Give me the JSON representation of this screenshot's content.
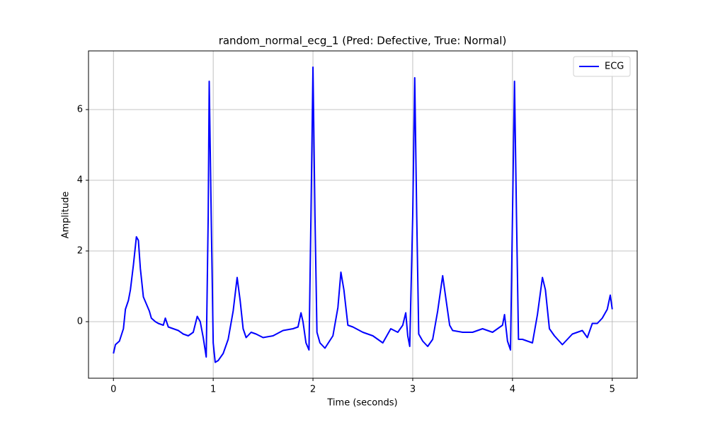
{
  "chart_data": {
    "type": "line",
    "title": "random_normal_ecg_1 (Pred: Defective, True: Normal)",
    "xlabel": "Time (seconds)",
    "ylabel": "Amplitude",
    "x": [
      0,
      0.02,
      0.06,
      0.1,
      0.12,
      0.15,
      0.17,
      0.2,
      0.23,
      0.25,
      0.27,
      0.3,
      0.33,
      0.36,
      0.38,
      0.42,
      0.45,
      0.5,
      0.52,
      0.55,
      0.6,
      0.65,
      0.7,
      0.75,
      0.8,
      0.84,
      0.87,
      0.9,
      0.93,
      0.95,
      0.96,
      0.98,
      1.0,
      1.02,
      1.05,
      1.1,
      1.15,
      1.2,
      1.24,
      1.27,
      1.3,
      1.33,
      1.38,
      1.43,
      1.5,
      1.6,
      1.7,
      1.8,
      1.85,
      1.88,
      1.9,
      1.93,
      1.96,
      1.98,
      2.0,
      2.02,
      2.04,
      2.07,
      2.12,
      2.2,
      2.25,
      2.28,
      2.31,
      2.35,
      2.4,
      2.5,
      2.6,
      2.7,
      2.78,
      2.85,
      2.9,
      2.93,
      2.95,
      2.97,
      3.0,
      3.02,
      3.04,
      3.06,
      3.1,
      3.15,
      3.2,
      3.25,
      3.3,
      3.33,
      3.37,
      3.4,
      3.5,
      3.6,
      3.7,
      3.8,
      3.9,
      3.92,
      3.95,
      3.98,
      4.0,
      4.02,
      4.04,
      4.06,
      4.1,
      4.2,
      4.25,
      4.3,
      4.33,
      4.37,
      4.42,
      4.5,
      4.6,
      4.7,
      4.75,
      4.8,
      4.85,
      4.9,
      4.95,
      4.98,
      5.0
    ],
    "series": [
      {
        "name": "ECG",
        "color": "#0000ff",
        "values": [
          -0.9,
          -0.65,
          -0.55,
          -0.2,
          0.35,
          0.6,
          0.9,
          1.6,
          2.4,
          2.3,
          1.5,
          0.7,
          0.5,
          0.3,
          0.1,
          0.0,
          -0.05,
          -0.1,
          0.1,
          -0.15,
          -0.2,
          -0.25,
          -0.35,
          -0.4,
          -0.3,
          0.15,
          0.0,
          -0.45,
          -1.0,
          3.0,
          6.8,
          3.0,
          -0.6,
          -1.15,
          -1.1,
          -0.9,
          -0.5,
          0.3,
          1.25,
          0.6,
          -0.2,
          -0.45,
          -0.3,
          -0.35,
          -0.45,
          -0.4,
          -0.25,
          -0.2,
          -0.15,
          0.25,
          0.0,
          -0.6,
          -0.8,
          3.0,
          7.2,
          3.0,
          -0.3,
          -0.6,
          -0.75,
          -0.4,
          0.4,
          1.4,
          0.9,
          -0.1,
          -0.15,
          -0.3,
          -0.4,
          -0.6,
          -0.2,
          -0.3,
          -0.1,
          0.25,
          -0.4,
          -0.7,
          3.0,
          6.9,
          3.0,
          -0.35,
          -0.55,
          -0.7,
          -0.5,
          0.3,
          1.3,
          0.7,
          -0.1,
          -0.25,
          -0.3,
          -0.3,
          -0.2,
          -0.3,
          -0.1,
          0.2,
          -0.55,
          -0.8,
          3.0,
          6.8,
          3.0,
          -0.5,
          -0.5,
          -0.6,
          0.2,
          1.25,
          0.9,
          -0.2,
          -0.4,
          -0.65,
          -0.35,
          -0.25,
          -0.45,
          -0.05,
          -0.05,
          0.1,
          0.35,
          0.75,
          0.35
        ]
      }
    ],
    "xlim": [
      -0.25,
      5.25
    ],
    "ylim": [
      -1.6,
      7.66
    ],
    "xticks": [
      0,
      1,
      2,
      3,
      4,
      5
    ],
    "yticks": [
      0,
      2,
      4,
      6
    ],
    "grid": true,
    "legend": "upper right"
  }
}
